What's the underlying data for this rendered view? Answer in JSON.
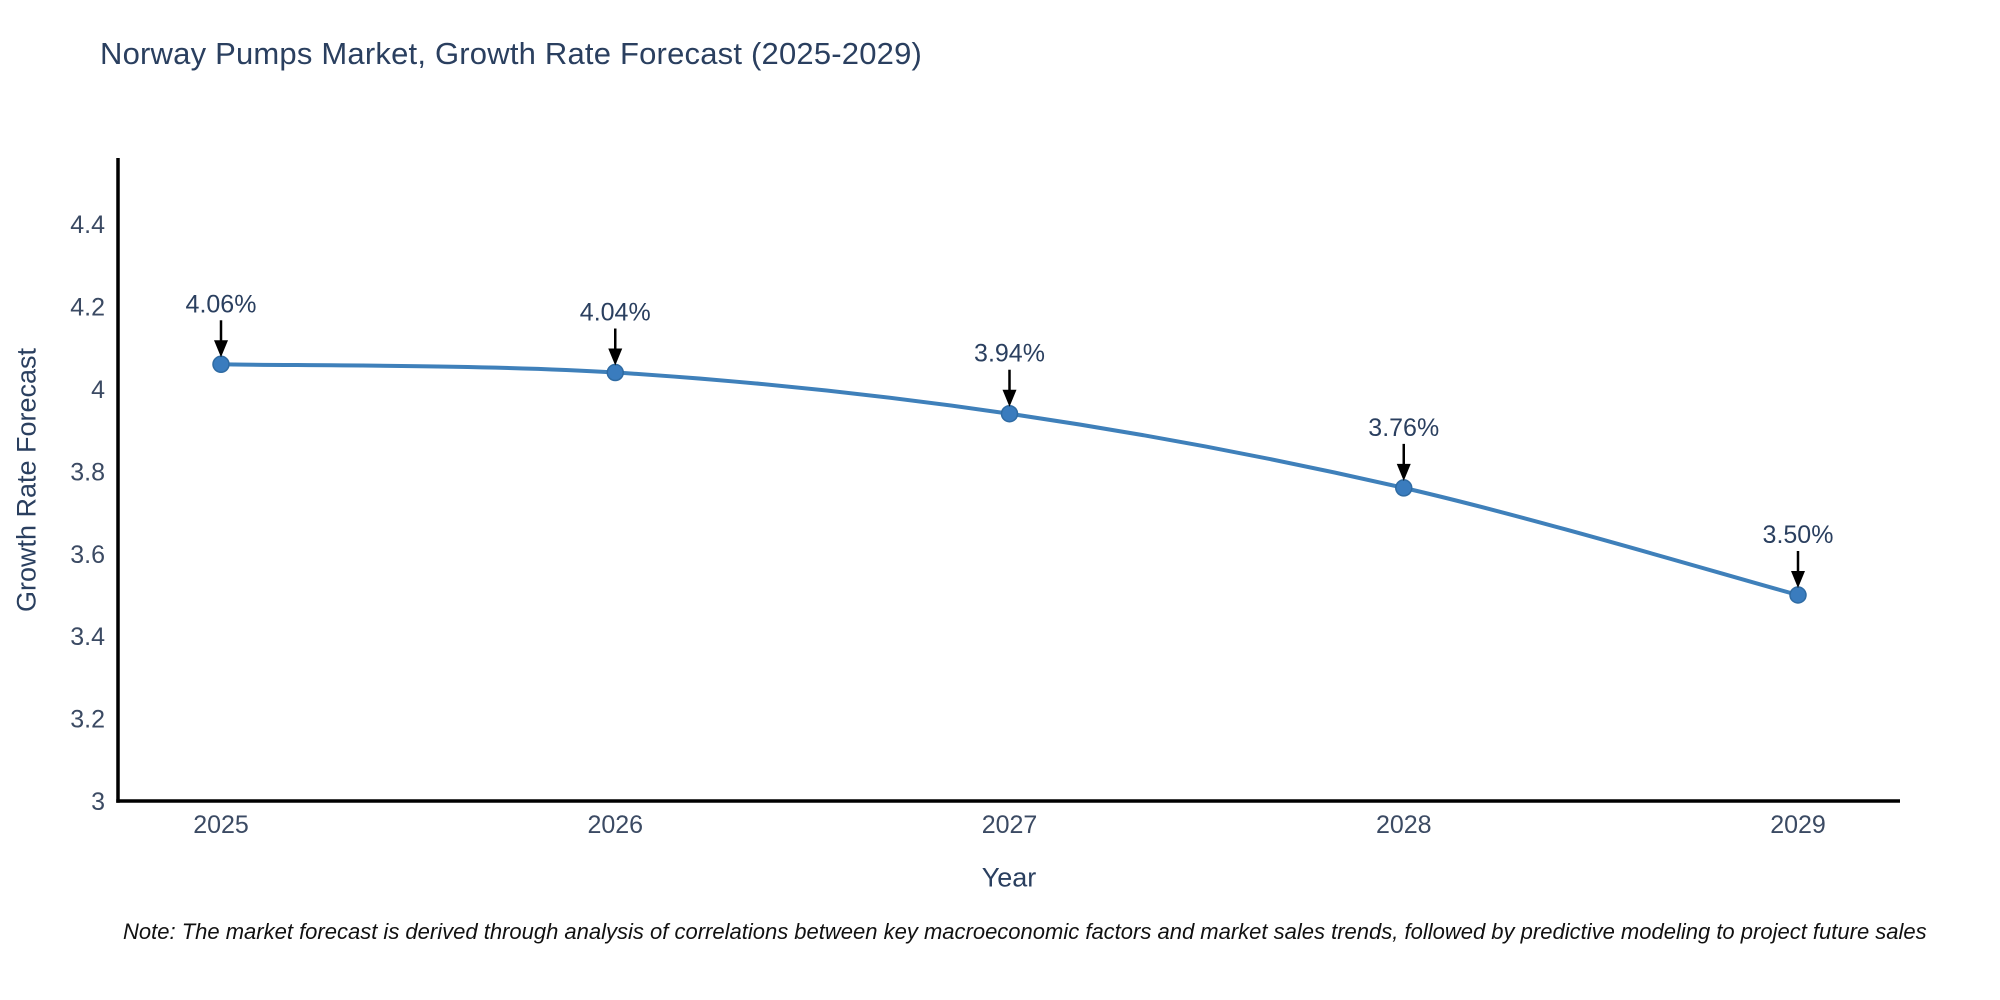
{
  "header": {
    "title": "Norway Pumps Market, Growth Rate Forecast (2025-2029)"
  },
  "chart_data": {
    "type": "line",
    "title": "Norway Pumps Market, Growth Rate Forecast (2025-2029)",
    "x": [
      2025,
      2026,
      2027,
      2028,
      2029
    ],
    "series": [
      {
        "name": "Growth Rate Forecast",
        "values": [
          4.06,
          4.04,
          3.94,
          3.76,
          3.5
        ]
      }
    ],
    "point_labels": [
      "4.06%",
      "4.04%",
      "3.94%",
      "3.76%",
      "3.50%"
    ],
    "xlabel": "Year",
    "ylabel": "Growth Rate Forecast",
    "xtick_labels": [
      "2025",
      "2026",
      "2027",
      "2028",
      "2029"
    ],
    "ytick_values": [
      3,
      3.2,
      3.4,
      3.6,
      3.8,
      4,
      4.2,
      4.4
    ],
    "ytick_labels": [
      "3",
      "3.2",
      "3.4",
      "3.6",
      "3.8",
      "4",
      "4.2",
      "4.4"
    ],
    "ylim": [
      3,
      4.55
    ],
    "grid": false,
    "legend": "none",
    "line_shape": "spline",
    "annotation_arrows": true,
    "colors": {
      "line": "#3f80ba",
      "marker": "#3a7cbe",
      "marker_edge": "#2f6ba3",
      "axis": "#000000",
      "title_text": "#2a3f5f",
      "tick_text": "#3b4a63",
      "annotation_text": "#2a3f5f",
      "arrow": "#000000",
      "background": "#ffffff"
    }
  },
  "footer": {
    "note": "Note: The market forecast is derived through analysis of correlations between key macroeconomic factors and market sales trends, followed by predictive modeling to project future sales"
  }
}
